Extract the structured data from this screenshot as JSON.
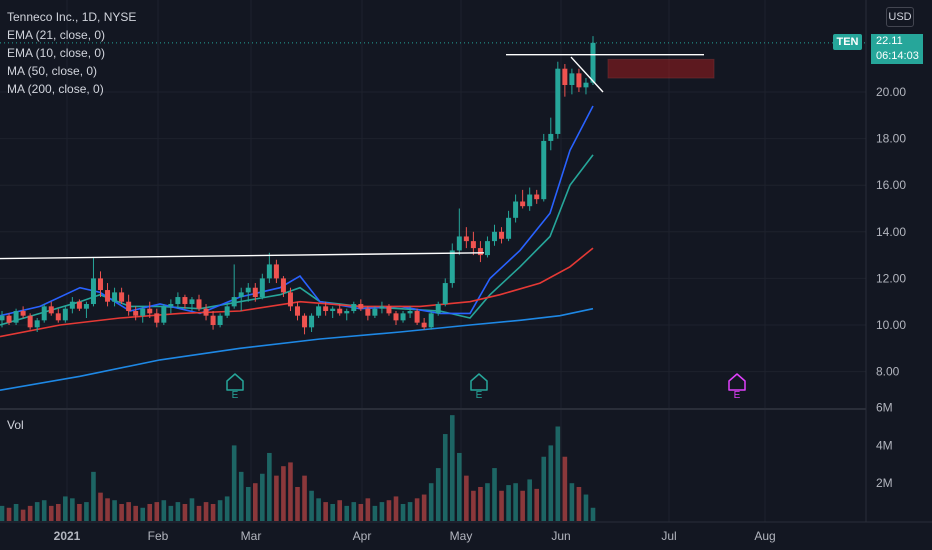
{
  "legend": {
    "title": "Tenneco Inc., 1D, NYSE",
    "indicators": [
      "EMA (21, close, 0)",
      "EMA (10, close, 0)",
      "MA (50, close, 0)",
      "MA (200, close, 0)"
    ]
  },
  "volume_label": "Vol",
  "currency": "USD",
  "last_price": {
    "ticker": "TEN",
    "price": "22.11",
    "countdown": "06:14:03"
  },
  "earnings_markers": [
    {
      "label": "E",
      "color": "#26a69a"
    },
    {
      "label": "E",
      "color": "#26a69a"
    },
    {
      "label": "E",
      "color": "#e040fb"
    }
  ],
  "colors": {
    "up": "#26a69a",
    "down": "#ef5350",
    "ema21": "#26a69a",
    "ema10": "#2962ff",
    "ma50": "#e53935",
    "ma200": "#1e88e5",
    "trendline": "#ffffff"
  },
  "chart_data": {
    "type": "candlestick",
    "symbol": "TEN",
    "interval": "1D",
    "x_ticks": [
      "2021",
      "Feb",
      "Mar",
      "Apr",
      "May",
      "Jun",
      "Jul",
      "Aug"
    ],
    "price_ticks": [
      "20.00",
      "18.00",
      "16.00",
      "14.00",
      "12.00",
      "10.00",
      "8.00"
    ],
    "volume_ticks": [
      "6M",
      "4M",
      "2M"
    ],
    "price_range": [
      6.9,
      23.9
    ],
    "volume_range": [
      0,
      6.3
    ],
    "resistance_level": 13.1,
    "breakout_level": 21.5,
    "series": [
      {
        "name": "EMA (21, close, 0)",
        "points": [
          [
            0,
            10.0
          ],
          [
            40,
            10.5
          ],
          [
            80,
            11.0
          ],
          [
            100,
            11.3
          ],
          [
            130,
            10.8
          ],
          [
            160,
            10.8
          ],
          [
            200,
            10.7
          ],
          [
            240,
            11.0
          ],
          [
            280,
            11.3
          ],
          [
            300,
            11.6
          ],
          [
            320,
            11.0
          ],
          [
            360,
            10.8
          ],
          [
            400,
            10.7
          ],
          [
            440,
            10.6
          ],
          [
            470,
            10.3
          ],
          [
            490,
            11.3
          ],
          [
            520,
            12.5
          ],
          [
            550,
            13.8
          ],
          [
            570,
            16.0
          ],
          [
            593,
            17.3
          ]
        ]
      },
      {
        "name": "EMA (10, close, 0)",
        "points": [
          [
            0,
            10.4
          ],
          [
            40,
            10.8
          ],
          [
            80,
            11.6
          ],
          [
            100,
            11.4
          ],
          [
            130,
            10.6
          ],
          [
            160,
            10.9
          ],
          [
            200,
            10.5
          ],
          [
            240,
            11.2
          ],
          [
            280,
            11.6
          ],
          [
            300,
            12.1
          ],
          [
            320,
            11.0
          ],
          [
            360,
            10.7
          ],
          [
            400,
            10.8
          ],
          [
            440,
            10.5
          ],
          [
            470,
            10.5
          ],
          [
            490,
            12.0
          ],
          [
            520,
            13.2
          ],
          [
            550,
            14.8
          ],
          [
            570,
            17.5
          ],
          [
            593,
            19.4
          ]
        ]
      },
      {
        "name": "MA (50, close, 0)",
        "points": [
          [
            0,
            9.5
          ],
          [
            60,
            10.0
          ],
          [
            120,
            10.3
          ],
          [
            180,
            10.5
          ],
          [
            240,
            10.6
          ],
          [
            300,
            11.0
          ],
          [
            360,
            10.8
          ],
          [
            420,
            10.8
          ],
          [
            470,
            11.0
          ],
          [
            500,
            11.3
          ],
          [
            540,
            11.8
          ],
          [
            570,
            12.5
          ],
          [
            593,
            13.3
          ]
        ]
      },
      {
        "name": "MA (200, close, 0)",
        "points": [
          [
            0,
            7.2
          ],
          [
            80,
            7.8
          ],
          [
            160,
            8.5
          ],
          [
            240,
            9.0
          ],
          [
            320,
            9.4
          ],
          [
            400,
            9.7
          ],
          [
            470,
            10.0
          ],
          [
            520,
            10.2
          ],
          [
            560,
            10.4
          ],
          [
            593,
            10.7
          ]
        ]
      }
    ],
    "candles_ohlc": [
      [
        10.2,
        10.6,
        9.9,
        10.4
      ],
      [
        10.4,
        10.5,
        10.0,
        10.1
      ],
      [
        10.1,
        10.7,
        10.0,
        10.6
      ],
      [
        10.6,
        10.8,
        10.3,
        10.4
      ],
      [
        10.4,
        10.5,
        9.8,
        9.9
      ],
      [
        9.9,
        10.3,
        9.7,
        10.2
      ],
      [
        10.2,
        10.9,
        10.1,
        10.8
      ],
      [
        10.8,
        11.0,
        10.4,
        10.5
      ],
      [
        10.5,
        10.7,
        10.1,
        10.2
      ],
      [
        10.2,
        10.8,
        10.1,
        10.7
      ],
      [
        10.7,
        11.2,
        10.5,
        11.0
      ],
      [
        11.0,
        11.1,
        10.6,
        10.7
      ],
      [
        10.7,
        11.0,
        10.3,
        10.9
      ],
      [
        10.9,
        12.9,
        10.8,
        12.0
      ],
      [
        12.0,
        12.3,
        11.2,
        11.5
      ],
      [
        11.5,
        11.8,
        10.8,
        11.0
      ],
      [
        11.0,
        11.6,
        10.8,
        11.4
      ],
      [
        11.4,
        11.6,
        10.9,
        11.0
      ],
      [
        11.0,
        11.3,
        10.4,
        10.6
      ],
      [
        10.6,
        10.8,
        10.2,
        10.4
      ],
      [
        10.4,
        10.8,
        10.1,
        10.7
      ],
      [
        10.7,
        11.0,
        10.3,
        10.5
      ],
      [
        10.5,
        10.7,
        9.9,
        10.1
      ],
      [
        10.1,
        10.9,
        10.0,
        10.8
      ],
      [
        10.8,
        11.1,
        10.5,
        10.9
      ],
      [
        10.9,
        11.4,
        10.7,
        11.2
      ],
      [
        11.2,
        11.3,
        10.7,
        10.9
      ],
      [
        10.9,
        11.2,
        10.6,
        11.1
      ],
      [
        11.1,
        11.3,
        10.6,
        10.7
      ],
      [
        10.7,
        10.9,
        10.2,
        10.4
      ],
      [
        10.4,
        10.6,
        9.8,
        10.0
      ],
      [
        10.0,
        10.5,
        9.9,
        10.4
      ],
      [
        10.4,
        10.9,
        10.3,
        10.8
      ],
      [
        10.8,
        12.6,
        10.7,
        11.2
      ],
      [
        11.2,
        11.6,
        10.6,
        11.4
      ],
      [
        11.4,
        11.8,
        11.0,
        11.6
      ],
      [
        11.6,
        11.8,
        11.0,
        11.2
      ],
      [
        11.2,
        12.2,
        11.1,
        12.0
      ],
      [
        12.0,
        13.1,
        11.8,
        12.6
      ],
      [
        12.6,
        12.8,
        11.8,
        12.0
      ],
      [
        12.0,
        12.1,
        11.2,
        11.4
      ],
      [
        11.4,
        11.6,
        10.6,
        10.8
      ],
      [
        10.8,
        11.0,
        10.2,
        10.4
      ],
      [
        10.4,
        10.5,
        9.6,
        9.9
      ],
      [
        9.9,
        10.5,
        9.7,
        10.4
      ],
      [
        10.4,
        10.9,
        10.3,
        10.8
      ],
      [
        10.8,
        11.0,
        10.4,
        10.6
      ],
      [
        10.6,
        10.8,
        10.3,
        10.7
      ],
      [
        10.7,
        10.9,
        10.4,
        10.5
      ],
      [
        10.5,
        10.7,
        10.2,
        10.6
      ],
      [
        10.6,
        11.0,
        10.5,
        10.9
      ],
      [
        10.9,
        11.1,
        10.6,
        10.7
      ],
      [
        10.7,
        10.8,
        10.2,
        10.4
      ],
      [
        10.4,
        10.8,
        10.3,
        10.7
      ],
      [
        10.7,
        11.0,
        10.5,
        10.8
      ],
      [
        10.8,
        10.9,
        10.4,
        10.5
      ],
      [
        10.5,
        10.6,
        10.0,
        10.2
      ],
      [
        10.2,
        10.6,
        10.1,
        10.5
      ],
      [
        10.5,
        10.8,
        10.3,
        10.6
      ],
      [
        10.6,
        10.7,
        10.0,
        10.1
      ],
      [
        10.1,
        10.3,
        9.8,
        9.9
      ],
      [
        9.9,
        10.6,
        9.8,
        10.5
      ],
      [
        10.5,
        11.0,
        10.4,
        10.9
      ],
      [
        10.9,
        12.0,
        10.8,
        11.8
      ],
      [
        11.8,
        13.5,
        11.6,
        13.2
      ],
      [
        13.2,
        15.0,
        13.0,
        13.8
      ],
      [
        13.8,
        14.2,
        13.3,
        13.6
      ],
      [
        13.6,
        14.0,
        13.0,
        13.3
      ],
      [
        13.3,
        13.6,
        12.7,
        13.0
      ],
      [
        13.0,
        13.8,
        12.9,
        13.6
      ],
      [
        13.6,
        14.3,
        13.4,
        14.0
      ],
      [
        14.0,
        14.2,
        13.5,
        13.7
      ],
      [
        13.7,
        14.9,
        13.6,
        14.6
      ],
      [
        14.6,
        15.6,
        14.4,
        15.3
      ],
      [
        15.3,
        15.8,
        15.0,
        15.1
      ],
      [
        15.1,
        15.9,
        14.9,
        15.6
      ],
      [
        15.6,
        15.8,
        15.2,
        15.4
      ],
      [
        15.4,
        18.2,
        15.3,
        17.9
      ],
      [
        17.9,
        18.9,
        17.5,
        18.2
      ],
      [
        18.2,
        21.3,
        18.0,
        21.0
      ],
      [
        21.0,
        21.2,
        19.8,
        20.3
      ],
      [
        20.3,
        21.0,
        19.9,
        20.8
      ],
      [
        20.8,
        21.0,
        20.0,
        20.2
      ],
      [
        20.2,
        20.6,
        19.9,
        20.4
      ],
      [
        20.4,
        22.4,
        20.3,
        22.11
      ]
    ],
    "volume_millions": [
      0.8,
      0.7,
      0.9,
      0.6,
      0.8,
      1.0,
      1.1,
      0.8,
      0.9,
      1.3,
      1.2,
      0.9,
      1.0,
      2.6,
      1.5,
      1.2,
      1.1,
      0.9,
      1.0,
      0.8,
      0.7,
      0.9,
      1.0,
      1.1,
      0.8,
      1.0,
      0.9,
      1.2,
      0.8,
      1.0,
      0.9,
      1.1,
      1.3,
      4.0,
      2.6,
      1.8,
      2.0,
      2.5,
      3.6,
      2.4,
      2.9,
      3.1,
      1.8,
      2.4,
      1.6,
      1.2,
      1.0,
      0.9,
      1.1,
      0.8,
      1.0,
      0.9,
      1.2,
      0.8,
      1.0,
      1.1,
      1.3,
      0.9,
      1.0,
      1.2,
      1.4,
      2.0,
      2.8,
      4.6,
      5.6,
      3.6,
      2.4,
      1.6,
      1.8,
      2.0,
      2.8,
      1.6,
      1.9,
      2.0,
      1.6,
      2.2,
      1.7,
      3.4,
      4.0,
      5.0,
      3.4,
      2.0,
      1.8,
      1.4,
      0.7
    ]
  }
}
